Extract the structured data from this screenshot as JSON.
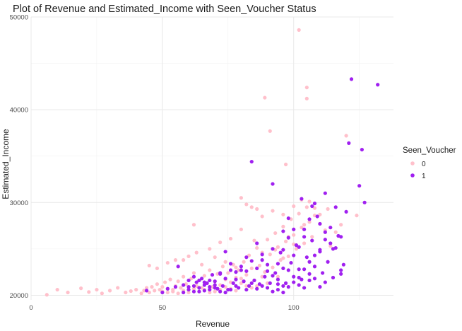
{
  "chart_data": {
    "type": "scatter",
    "title": "Plot of Revenue and Estimated_Income with Seen_Voucher Status",
    "xlabel": "Revenue",
    "ylabel": "Estimated_Income",
    "xlim": [
      0,
      138
    ],
    "ylim": [
      19500,
      50000
    ],
    "x_ticks": [
      0,
      50,
      100
    ],
    "y_ticks": [
      20000,
      30000,
      40000,
      50000
    ],
    "grid": true,
    "legend": {
      "title": "Seen_Voucher",
      "position": "right",
      "entries": [
        {
          "label": "0",
          "color": "#FFC0CB"
        },
        {
          "label": "1",
          "color": "#A020F0"
        }
      ]
    },
    "series": [
      {
        "name": "0",
        "color": "#FFC0CB",
        "points": [
          [
            6,
            20050
          ],
          [
            10,
            20600
          ],
          [
            14,
            20300
          ],
          [
            19,
            20750
          ],
          [
            22,
            20350
          ],
          [
            25,
            20600
          ],
          [
            27,
            20200
          ],
          [
            30,
            20500
          ],
          [
            33,
            20800
          ],
          [
            36,
            20300
          ],
          [
            38,
            20450
          ],
          [
            40,
            20600
          ],
          [
            42,
            20200
          ],
          [
            43,
            20500
          ],
          [
            44,
            20800
          ],
          [
            45,
            20300
          ],
          [
            46,
            20900
          ],
          [
            47,
            20500
          ],
          [
            48,
            21200
          ],
          [
            49,
            20600
          ],
          [
            50,
            20900
          ],
          [
            51,
            21400
          ],
          [
            52,
            20700
          ],
          [
            53,
            21700
          ],
          [
            54,
            20400
          ],
          [
            55,
            21000
          ],
          [
            56,
            21500
          ],
          [
            57,
            20800
          ],
          [
            58,
            22000
          ],
          [
            59,
            21200
          ],
          [
            60,
            20600
          ],
          [
            61,
            21800
          ],
          [
            62,
            22400
          ],
          [
            63,
            21000
          ],
          [
            64,
            21600
          ],
          [
            65,
            20800
          ],
          [
            66,
            22100
          ],
          [
            67,
            21300
          ],
          [
            68,
            22700
          ],
          [
            69,
            20900
          ],
          [
            70,
            21500
          ],
          [
            71,
            22300
          ],
          [
            72,
            21100
          ],
          [
            73,
            23100
          ],
          [
            74,
            21700
          ],
          [
            75,
            22400
          ],
          [
            76,
            20700
          ],
          [
            77,
            23300
          ],
          [
            78,
            21900
          ],
          [
            79,
            22700
          ],
          [
            80,
            21300
          ],
          [
            81,
            23600
          ],
          [
            82,
            22200
          ],
          [
            83,
            24300
          ],
          [
            84,
            22900
          ],
          [
            85,
            21600
          ],
          [
            86,
            25100
          ],
          [
            87,
            23200
          ],
          [
            88,
            24600
          ],
          [
            89,
            22500
          ],
          [
            90,
            26000
          ],
          [
            91,
            24400
          ],
          [
            92,
            23000
          ],
          [
            93,
            26700
          ],
          [
            94,
            25200
          ],
          [
            95,
            23800
          ],
          [
            96,
            27400
          ],
          [
            97,
            25800
          ],
          [
            98,
            24200
          ],
          [
            99,
            28200
          ],
          [
            100,
            26500
          ],
          [
            101,
            25000
          ],
          [
            102,
            28800
          ],
          [
            103,
            27300
          ],
          [
            104,
            25600
          ],
          [
            105,
            29500
          ],
          [
            106,
            27900
          ],
          [
            107,
            26300
          ],
          [
            108,
            28600
          ],
          [
            45,
            23200
          ],
          [
            48,
            22900
          ],
          [
            52,
            23500
          ],
          [
            55,
            23800
          ],
          [
            60,
            24200
          ],
          [
            63,
            24600
          ],
          [
            68,
            25000
          ],
          [
            72,
            25700
          ],
          [
            76,
            26100
          ],
          [
            80,
            27100
          ],
          [
            82,
            29800
          ],
          [
            84,
            29500
          ],
          [
            86,
            29300
          ],
          [
            88,
            28500
          ],
          [
            92,
            29100
          ],
          [
            96,
            28700
          ],
          [
            100,
            29600
          ],
          [
            103,
            30300
          ],
          [
            106,
            30100
          ],
          [
            108,
            29400
          ],
          [
            62,
            27600
          ],
          [
            80,
            30500
          ],
          [
            89,
            41300
          ],
          [
            91,
            37700
          ],
          [
            97,
            34100
          ],
          [
            102,
            48600
          ],
          [
            105,
            42400
          ],
          [
            105,
            41200
          ],
          [
            120,
            37200
          ],
          [
            124,
            28600
          ],
          [
            114,
            25300
          ],
          [
            116,
            26800
          ],
          [
            118,
            27600
          ],
          [
            110,
            27700
          ],
          [
            112,
            27000
          ],
          [
            100,
            25500
          ],
          [
            96,
            24000
          ],
          [
            94,
            22000
          ],
          [
            90,
            21300
          ],
          [
            88,
            22000
          ],
          [
            86,
            21000
          ],
          [
            84,
            20800
          ],
          [
            82,
            21000
          ],
          [
            80,
            21800
          ],
          [
            78,
            20500
          ],
          [
            76,
            21400
          ],
          [
            74,
            20900
          ],
          [
            72,
            20600
          ],
          [
            70,
            20400
          ],
          [
            68,
            20300
          ],
          [
            66,
            20600
          ],
          [
            64,
            20400
          ],
          [
            62,
            20700
          ],
          [
            60,
            20300
          ],
          [
            58,
            20500
          ],
          [
            56,
            20200
          ],
          [
            54,
            20600
          ],
          [
            52,
            20300
          ],
          [
            50,
            20400
          ],
          [
            58,
            23800
          ],
          [
            65,
            23300
          ],
          [
            70,
            24100
          ],
          [
            74,
            23600
          ],
          [
            78,
            23000
          ],
          [
            85,
            25900
          ],
          [
            93,
            24900
          ],
          [
            98,
            26300
          ],
          [
            104,
            27600
          ],
          [
            110,
            28700
          ],
          [
            113,
            29300
          ]
        ]
      },
      {
        "name": "1",
        "color": "#A020F0",
        "points": [
          [
            44,
            20500
          ],
          [
            50,
            20300
          ],
          [
            52,
            20700
          ],
          [
            55,
            20900
          ],
          [
            56,
            23100
          ],
          [
            58,
            21100
          ],
          [
            60,
            20600
          ],
          [
            62,
            20400
          ],
          [
            63,
            21400
          ],
          [
            64,
            20800
          ],
          [
            65,
            21800
          ],
          [
            66,
            20500
          ],
          [
            67,
            21300
          ],
          [
            68,
            20900
          ],
          [
            69,
            22200
          ],
          [
            70,
            21500
          ],
          [
            71,
            20700
          ],
          [
            72,
            22400
          ],
          [
            73,
            21000
          ],
          [
            74,
            21800
          ],
          [
            75,
            20600
          ],
          [
            76,
            22700
          ],
          [
            77,
            21300
          ],
          [
            78,
            22500
          ],
          [
            79,
            20800
          ],
          [
            80,
            23100
          ],
          [
            81,
            21500
          ],
          [
            82,
            22600
          ],
          [
            83,
            21000
          ],
          [
            84,
            23700
          ],
          [
            85,
            21600
          ],
          [
            86,
            22900
          ],
          [
            87,
            21200
          ],
          [
            88,
            24400
          ],
          [
            89,
            22000
          ],
          [
            90,
            23300
          ],
          [
            91,
            21300
          ],
          [
            92,
            25000
          ],
          [
            93,
            22400
          ],
          [
            94,
            21700
          ],
          [
            95,
            24600
          ],
          [
            96,
            22900
          ],
          [
            97,
            21300
          ],
          [
            98,
            26200
          ],
          [
            99,
            23500
          ],
          [
            100,
            22000
          ],
          [
            101,
            25400
          ],
          [
            102,
            22800
          ],
          [
            103,
            21700
          ],
          [
            104,
            27100
          ],
          [
            105,
            24100
          ],
          [
            106,
            22300
          ],
          [
            107,
            25900
          ],
          [
            108,
            23100
          ],
          [
            109,
            28500
          ],
          [
            110,
            24700
          ],
          [
            111,
            22400
          ],
          [
            112,
            26800
          ],
          [
            113,
            23600
          ],
          [
            114,
            27300
          ],
          [
            115,
            25000
          ],
          [
            116,
            29500
          ],
          [
            117,
            26400
          ],
          [
            118,
            22700
          ],
          [
            119,
            23300
          ],
          [
            120,
            29000
          ],
          [
            121,
            36400
          ],
          [
            122,
            43300
          ],
          [
            125,
            31800
          ],
          [
            126,
            35700
          ],
          [
            127,
            30000
          ],
          [
            132,
            42700
          ],
          [
            84,
            34400
          ],
          [
            92,
            32000
          ],
          [
            103,
            30400
          ],
          [
            107,
            29600
          ],
          [
            110,
            27700
          ],
          [
            112,
            31000
          ],
          [
            96,
            26900
          ],
          [
            98,
            28300
          ],
          [
            100,
            27100
          ],
          [
            102,
            25200
          ],
          [
            88,
            23800
          ],
          [
            86,
            25600
          ],
          [
            82,
            24100
          ],
          [
            80,
            22700
          ],
          [
            78,
            21700
          ],
          [
            76,
            23400
          ],
          [
            74,
            24700
          ],
          [
            72,
            22300
          ],
          [
            70,
            21100
          ],
          [
            68,
            20600
          ],
          [
            66,
            21400
          ],
          [
            64,
            20400
          ],
          [
            62,
            21000
          ],
          [
            60,
            20900
          ],
          [
            58,
            20300
          ],
          [
            90,
            20800
          ],
          [
            94,
            20600
          ],
          [
            96,
            21000
          ],
          [
            98,
            20900
          ],
          [
            100,
            21400
          ],
          [
            102,
            21900
          ],
          [
            104,
            22800
          ],
          [
            106,
            23600
          ],
          [
            108,
            24300
          ],
          [
            110,
            24900
          ],
          [
            114,
            25600
          ],
          [
            116,
            25100
          ],
          [
            118,
            26300
          ],
          [
            92,
            22100
          ],
          [
            94,
            23400
          ],
          [
            96,
            24900
          ],
          [
            98,
            22700
          ],
          [
            100,
            24300
          ],
          [
            104,
            26300
          ],
          [
            106,
            28200
          ],
          [
            108,
            29900
          ],
          [
            112,
            26000
          ],
          [
            108,
            21800
          ],
          [
            112,
            21400
          ],
          [
            115,
            21900
          ],
          [
            118,
            22300
          ],
          [
            96,
            20300
          ],
          [
            92,
            20400
          ],
          [
            86,
            20700
          ],
          [
            82,
            20600
          ],
          [
            78,
            21000
          ],
          [
            76,
            20600
          ],
          [
            74,
            20300
          ],
          [
            72,
            20400
          ],
          [
            70,
            20800
          ],
          [
            68,
            21600
          ],
          [
            66,
            21100
          ],
          [
            64,
            21600
          ],
          [
            62,
            22000
          ],
          [
            60,
            21600
          ],
          [
            84,
            21300
          ],
          [
            88,
            21000
          ],
          [
            90,
            22600
          ],
          [
            94,
            21200
          ],
          [
            102,
            21100
          ],
          [
            104,
            20800
          ],
          [
            106,
            21600
          ],
          [
            110,
            20900
          ]
        ]
      }
    ]
  }
}
